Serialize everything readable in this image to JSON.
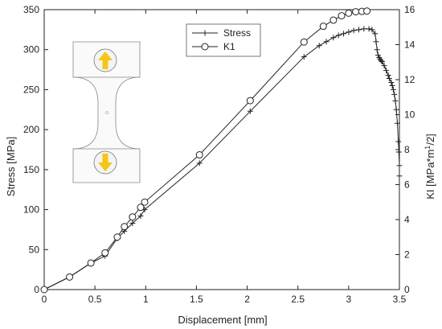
{
  "chart_data": {
    "type": "line",
    "xlabel": "Displacement [mm]",
    "ylabel_left": "Stress [MPa]",
    "ylabel_right": "KI [MPa*m",
    "ylabel_right_sup": "1",
    "ylabel_right_tail": "/2]",
    "xlim": [
      0,
      3.5
    ],
    "ylim_left": [
      0,
      350
    ],
    "ylim_right": [
      0,
      16
    ],
    "x_ticks": [
      0,
      0.5,
      1,
      1.5,
      2,
      2.5,
      3,
      3.5
    ],
    "x_tick_labels": [
      "0",
      "0.5",
      "1",
      "1.5",
      "2",
      "2.5",
      "3",
      "3.5"
    ],
    "y_left_ticks": [
      0,
      50,
      100,
      150,
      200,
      250,
      300,
      350
    ],
    "y_left_tick_labels": [
      "0",
      "50",
      "100",
      "150",
      "200",
      "250",
      "300",
      "350"
    ],
    "y_right_ticks": [
      0,
      2,
      4,
      6,
      8,
      10,
      12,
      14,
      16
    ],
    "y_right_tick_labels": [
      "0",
      "2",
      "4",
      "6",
      "8",
      "10",
      "12",
      "14",
      "16"
    ],
    "grid": false,
    "legend_position": "top-center",
    "series": [
      {
        "name": "Stress",
        "axis": "left",
        "marker": "plus",
        "color": "#222222",
        "x": [
          0,
          0.25,
          0.46,
          0.6,
          0.72,
          0.79,
          0.87,
          0.95,
          0.99,
          1.53,
          2.03,
          2.56,
          2.71,
          2.78,
          2.85,
          2.9,
          2.95,
          3.0,
          3.05,
          3.1,
          3.15,
          3.2,
          3.23,
          3.26,
          3.27,
          3.28,
          3.29,
          3.3,
          3.31,
          3.32,
          3.33,
          3.35,
          3.37,
          3.39,
          3.4,
          3.42,
          3.43,
          3.44,
          3.45,
          3.46,
          3.47,
          3.48,
          3.49,
          3.495,
          3.5,
          3.5
        ],
        "y": [
          0,
          16,
          33,
          42,
          64,
          73,
          83,
          92,
          100,
          158,
          223,
          291,
          305,
          310,
          315,
          318,
          320,
          322,
          324,
          325,
          326,
          326,
          325,
          320,
          310,
          300,
          293,
          290,
          288,
          286,
          285,
          280,
          274,
          268,
          264,
          259,
          255,
          250,
          244,
          236,
          225,
          208,
          185,
          172,
          155,
          142
        ]
      },
      {
        "name": "K1",
        "axis": "right",
        "marker": "circle",
        "color": "#222222",
        "x": [
          0,
          0.25,
          0.46,
          0.6,
          0.72,
          0.79,
          0.87,
          0.95,
          0.99,
          1.53,
          2.03,
          2.56,
          2.75,
          2.85,
          2.93,
          3.0,
          3.07,
          3.13,
          3.18
        ],
        "y": [
          0,
          0.72,
          1.52,
          2.1,
          3.0,
          3.6,
          4.15,
          4.7,
          5.0,
          7.7,
          10.8,
          14.15,
          15.05,
          15.4,
          15.65,
          15.8,
          15.88,
          15.9,
          15.92
        ]
      }
    ],
    "inset": {
      "content": "dogbone tensile specimen sketch with yellow load arrows",
      "arrow_color": "#f5c518"
    }
  }
}
